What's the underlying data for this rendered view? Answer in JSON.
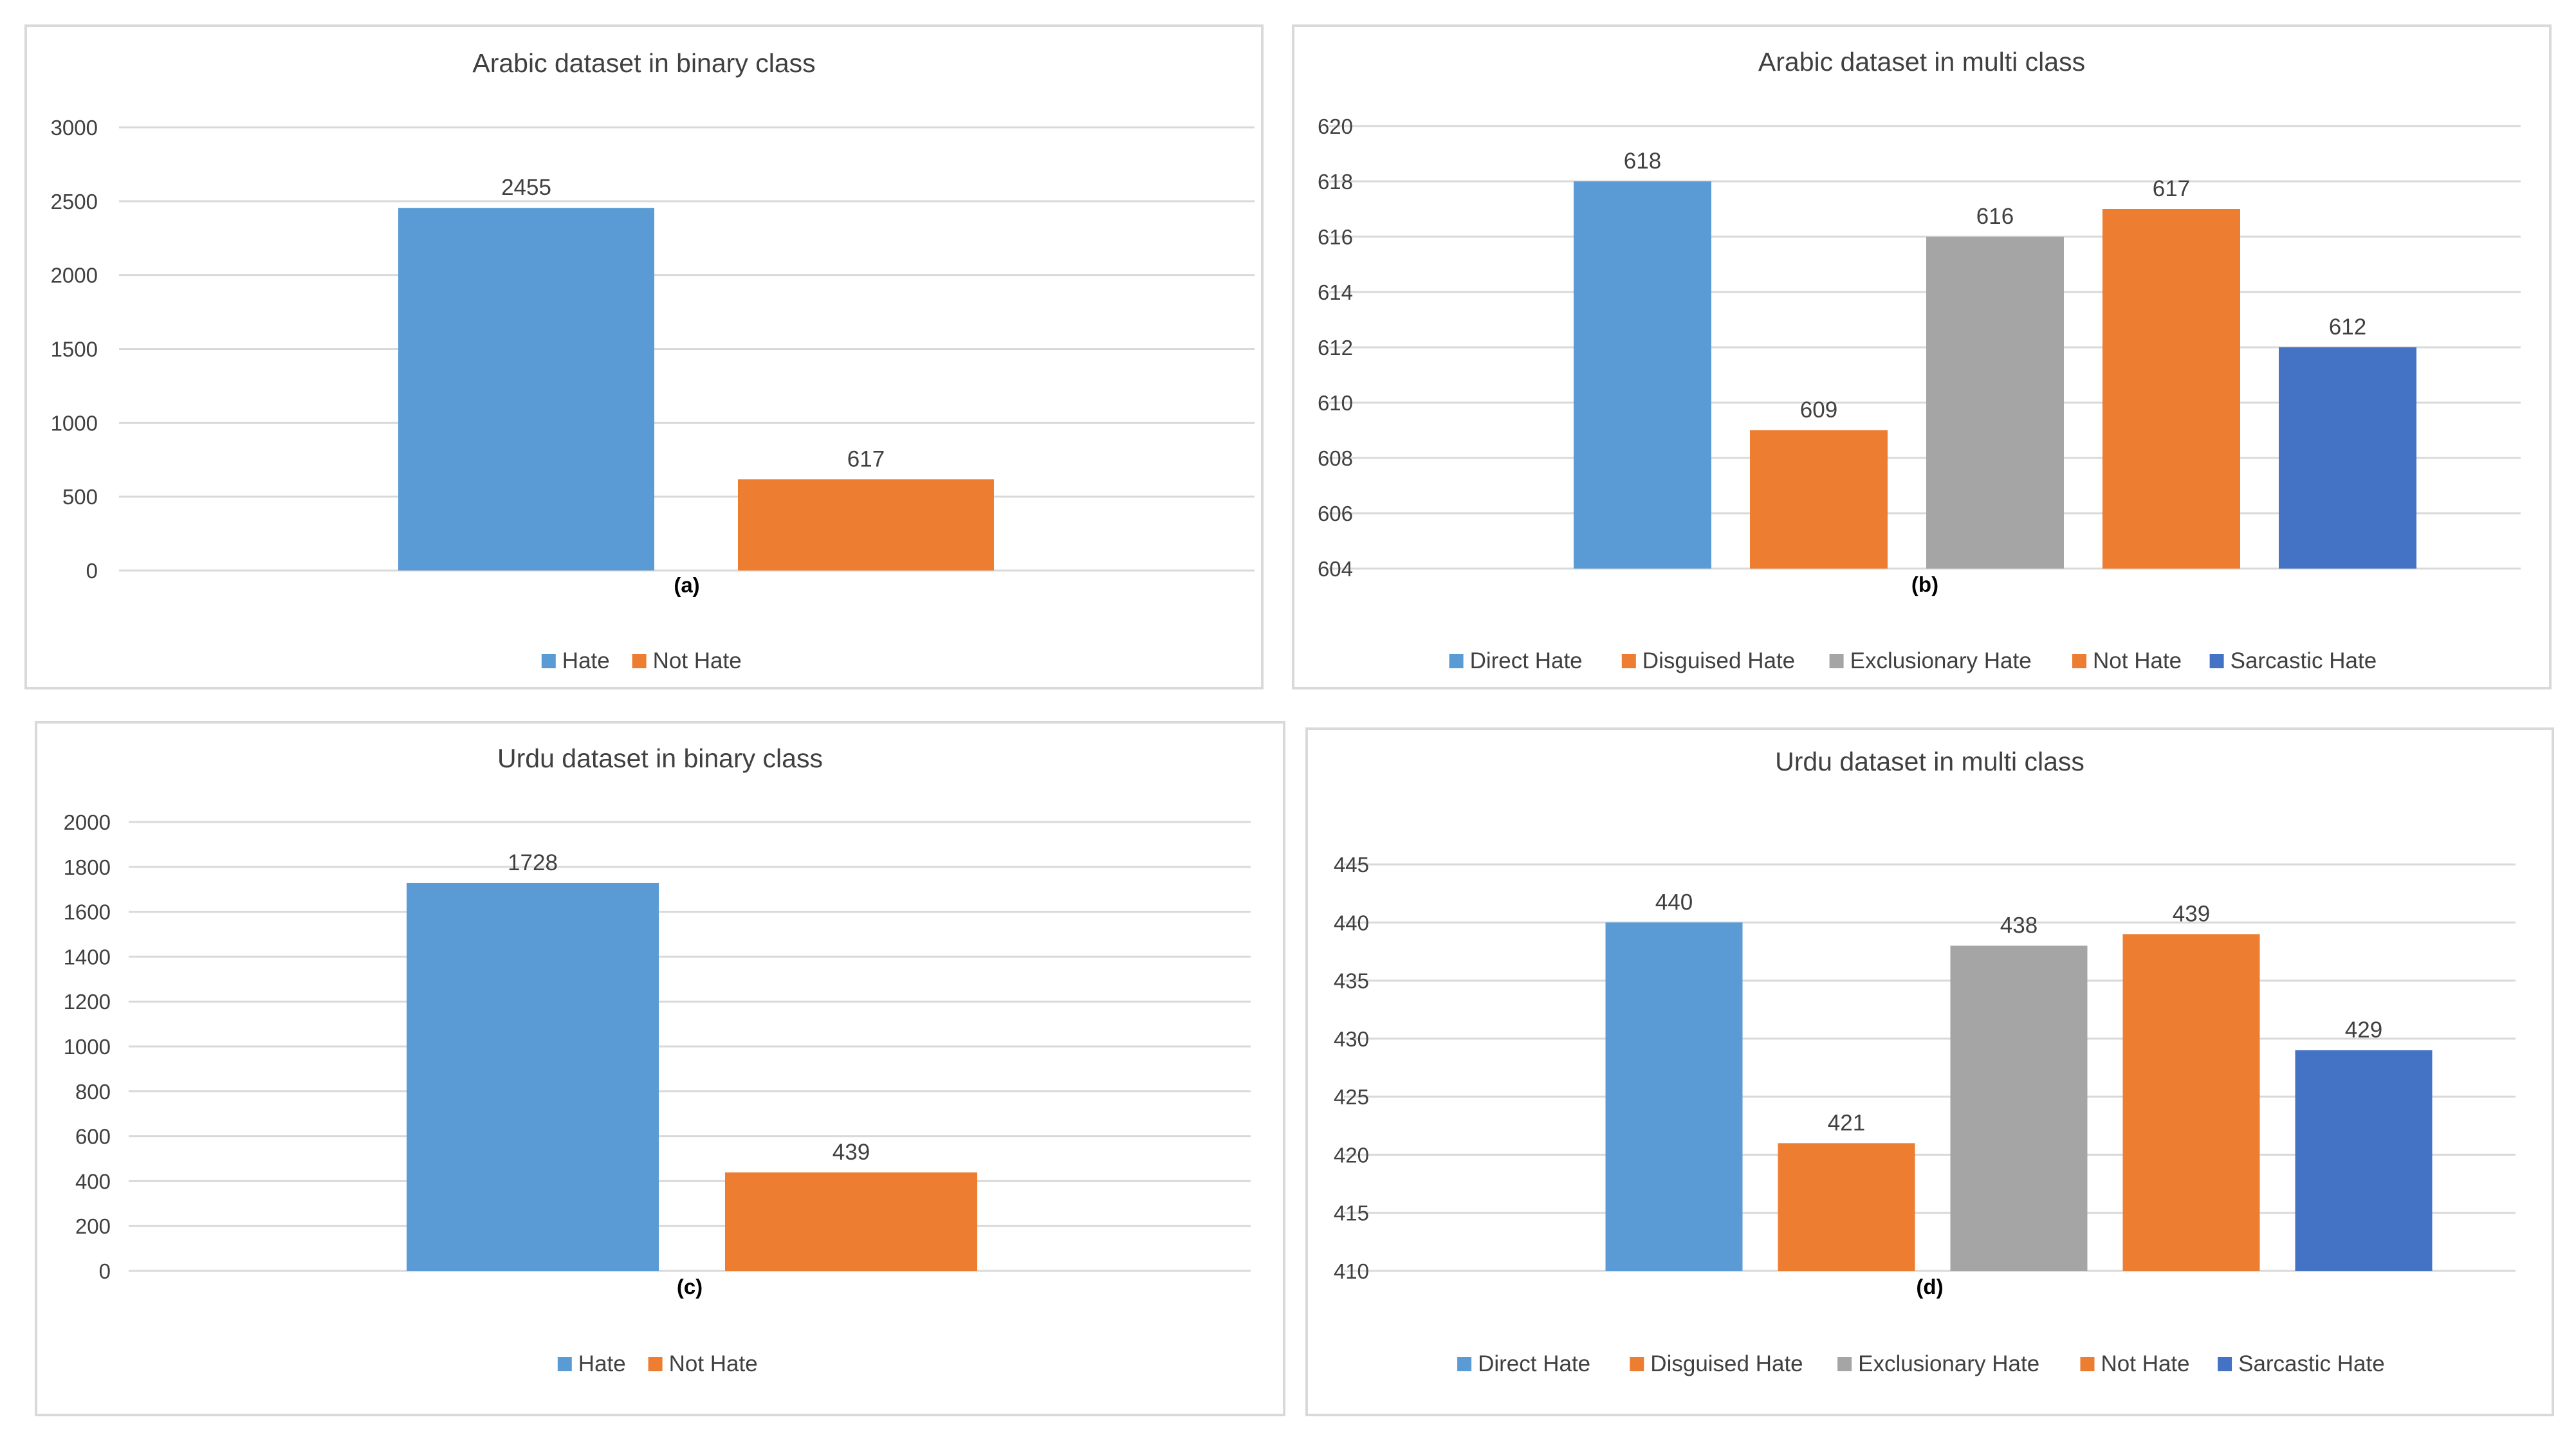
{
  "figure": {
    "panels": [
      {
        "id": "a",
        "subcaption": "(a)"
      },
      {
        "id": "b",
        "subcaption": "(b)"
      },
      {
        "id": "c",
        "subcaption": "(c)"
      },
      {
        "id": "d",
        "subcaption": "(d)"
      }
    ]
  },
  "colors": {
    "Hate": "#5B9BD5",
    "Not Hate": "#ED7D31",
    "Direct Hate": "#5B9BD5",
    "Disguised Hate": "#ED7D31",
    "Exclusionary Hate": "#A5A5A5",
    "Sarcastic Hate": "#4472C4",
    "gridline": "#D9D9D9",
    "panel_border": "#D9D9D9",
    "text": "#404040"
  },
  "chart_data": [
    {
      "type": "bar",
      "title": "Arabic dataset in binary class",
      "subcaption": "(a)",
      "categories": [
        "Hate",
        "Not Hate"
      ],
      "values": [
        2455,
        617
      ],
      "yticks": [
        0,
        500,
        1000,
        1500,
        2000,
        2500,
        3000
      ],
      "ylim": [
        0,
        3000
      ],
      "legend": [
        "Hate",
        "Not Hate"
      ],
      "legend_position": "bottom",
      "grid": true
    },
    {
      "type": "bar",
      "title": "Arabic dataset in multi class",
      "subcaption": "(b)",
      "categories": [
        "Direct Hate",
        "Disguised Hate",
        "Exclusionary Hate",
        "Not Hate",
        "Sarcastic Hate"
      ],
      "values": [
        618,
        609,
        616,
        617,
        612
      ],
      "yticks": [
        604,
        606,
        608,
        610,
        612,
        614,
        616,
        618,
        620
      ],
      "ylim": [
        604,
        620
      ],
      "legend": [
        "Direct Hate",
        "Disguised Hate",
        "Exclusionary Hate",
        "Not Hate",
        "Sarcastic Hate"
      ],
      "legend_position": "bottom",
      "grid": true
    },
    {
      "type": "bar",
      "title": "Urdu dataset in binary class",
      "subcaption": "(c)",
      "categories": [
        "Hate",
        "Not Hate"
      ],
      "values": [
        1728,
        439
      ],
      "yticks": [
        0,
        200,
        400,
        600,
        800,
        1000,
        1200,
        1400,
        1600,
        1800,
        2000
      ],
      "ylim": [
        0,
        2000
      ],
      "legend": [
        "Hate",
        "Not Hate"
      ],
      "legend_position": "bottom",
      "grid": true
    },
    {
      "type": "bar",
      "title": "Urdu dataset in multi class",
      "subcaption": "(d)",
      "categories": [
        "Direct Hate",
        "Disguised Hate",
        "Exclusionary Hate",
        "Not Hate",
        "Sarcastic Hate"
      ],
      "values": [
        440,
        421,
        438,
        439,
        429
      ],
      "yticks": [
        410,
        415,
        420,
        425,
        430,
        435,
        440,
        445
      ],
      "ylim": [
        410,
        445
      ],
      "legend": [
        "Direct Hate",
        "Disguised Hate",
        "Exclusionary Hate",
        "Not Hate",
        "Sarcastic Hate"
      ],
      "legend_position": "bottom",
      "grid": true
    }
  ]
}
